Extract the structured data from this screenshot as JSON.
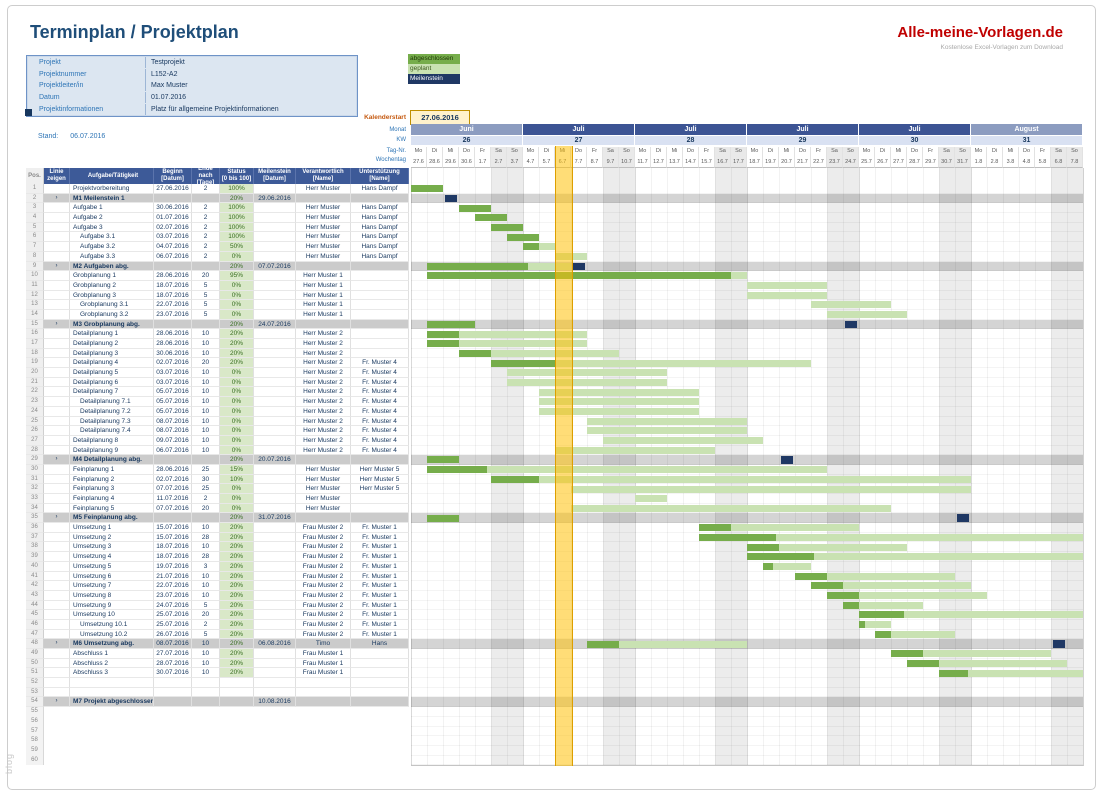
{
  "header": {
    "title": "Terminplan / Projektplan",
    "logo": "Alle-meine-Vorlagen.de",
    "logo_sub": "Kostenlose Excel-Vorlagen zum Download",
    "stand_label": "Stand:",
    "stand_value": "06.07.2016"
  },
  "project_info": {
    "rows": [
      {
        "label": "Projekt",
        "value": "Testprojekt"
      },
      {
        "label": "Projektnummer",
        "value": "L152-A2"
      },
      {
        "label": "Projektleiter/in",
        "value": "Max Muster"
      },
      {
        "label": "Datum",
        "value": "01.07.2016"
      },
      {
        "label": "Projektinformationen",
        "value": "Platz für allgemeine Projektinformationen"
      }
    ]
  },
  "legend": [
    {
      "label": "abgeschlossen",
      "color": "#76AD4B",
      "text": "#203808"
    },
    {
      "label": "geplant",
      "color": "#C9E2B2",
      "text": "#3C5A1E"
    },
    {
      "label": "Meilenstein",
      "color": "#1F3864",
      "text": "#FFFFFF"
    }
  ],
  "colors": {
    "done": "#76AD4B",
    "planned": "#C9E2B2",
    "milestone": "#1F3864",
    "today": "#FFC000",
    "header_blue": "#3D5A98"
  },
  "calendar": {
    "kalenderstart_label": "Kalenderstart",
    "kalenderstart_value": "27.06.2016",
    "row_labels": [
      "Monat",
      "KW",
      "Tag-Nr.",
      "Wochentag"
    ],
    "months": [
      {
        "label": "Juni",
        "days": 7,
        "shade": "light"
      },
      {
        "label": "Juli",
        "days": 7,
        "shade": "dark"
      },
      {
        "label": "Juli",
        "days": 7,
        "shade": "dark"
      },
      {
        "label": "Juli",
        "days": 7,
        "shade": "dark"
      },
      {
        "label": "Juli",
        "days": 7,
        "shade": "dark"
      },
      {
        "label": "August",
        "days": 7,
        "shade": "light"
      }
    ],
    "weeks": [
      "26",
      "27",
      "28",
      "29",
      "30",
      "31"
    ],
    "weekdays": [
      "Mo",
      "Di",
      "Mi",
      "Do",
      "Fr",
      "Sa",
      "So"
    ],
    "dates": [
      "27.6",
      "28.6",
      "29.6",
      "30.6",
      "1.7",
      "2.7",
      "3.7",
      "4.7",
      "5.7",
      "6.7",
      "7.7",
      "8.7",
      "9.7",
      "10.7",
      "11.7",
      "12.7",
      "13.7",
      "14.7",
      "15.7",
      "16.7",
      "17.7",
      "18.7",
      "19.7",
      "20.7",
      "21.7",
      "22.7",
      "23.7",
      "24.7",
      "25.7",
      "26.7",
      "27.7",
      "28.7",
      "29.7",
      "30.7",
      "31.7",
      "1.8",
      "2.8",
      "3.8",
      "4.8",
      "5.8",
      "6.8",
      "7.8"
    ],
    "today_index": 9
  },
  "table": {
    "headers": [
      {
        "l1": "Pos.",
        "l2": ""
      },
      {
        "l1": "Linie",
        "l2": "zeigen"
      },
      {
        "l1": "Aufgabe/Tätigkeit",
        "l2": ""
      },
      {
        "l1": "Beginn",
        "l2": "[Datum]"
      },
      {
        "l1": "Ende nach",
        "l2": "[Tage]"
      },
      {
        "l1": "Status",
        "l2": "[0 bis 100]"
      },
      {
        "l1": "Meilenstein",
        "l2": "[Datum]"
      },
      {
        "l1": "Verantwortlich",
        "l2": "[Name]"
      },
      {
        "l1": "Unterstützung",
        "l2": "[Name]"
      }
    ]
  },
  "rows": [
    {
      "pos": "1",
      "task": "Projektvorbereitung",
      "beginn": "27.06.2016",
      "ende": "2",
      "status": "100%",
      "verantwortlich": "Herr Muster",
      "unterstuetzung": "Hans Dampf",
      "kind": "task",
      "bar": {
        "s": 0,
        "l": 2,
        "d": 1
      }
    },
    {
      "pos": "2",
      "linie": "›",
      "task": "M1 Meilenstein 1",
      "status": "20%",
      "meilenstein": "29.06.2016",
      "kind": "ms",
      "ms": 2
    },
    {
      "pos": "3",
      "task": "Aufgabe 1",
      "beginn": "30.06.2016",
      "ende": "2",
      "status": "100%",
      "verantwortlich": "Herr Muster",
      "unterstuetzung": "Hans Dampf",
      "kind": "task",
      "bar": {
        "s": 3,
        "l": 2,
        "d": 1
      }
    },
    {
      "pos": "4",
      "task": "Aufgabe 2",
      "beginn": "01.07.2016",
      "ende": "2",
      "status": "100%",
      "verantwortlich": "Herr Muster",
      "unterstuetzung": "Hans Dampf",
      "kind": "task",
      "bar": {
        "s": 4,
        "l": 2,
        "d": 1
      }
    },
    {
      "pos": "5",
      "task": "Aufgabe 3",
      "beginn": "02.07.2016",
      "ende": "2",
      "status": "100%",
      "verantwortlich": "Herr Muster",
      "unterstuetzung": "Hans Dampf",
      "kind": "task",
      "bar": {
        "s": 5,
        "l": 2,
        "d": 1
      }
    },
    {
      "pos": "6",
      "task": "Aufgabe 3.1",
      "ind": 1,
      "beginn": "03.07.2016",
      "ende": "2",
      "status": "100%",
      "verantwortlich": "Herr Muster",
      "unterstuetzung": "Hans Dampf",
      "kind": "task",
      "bar": {
        "s": 6,
        "l": 2,
        "d": 1
      }
    },
    {
      "pos": "7",
      "task": "Aufgabe 3.2",
      "ind": 1,
      "beginn": "04.07.2016",
      "ende": "2",
      "status": "50%",
      "verantwortlich": "Herr Muster",
      "unterstuetzung": "Hans Dampf",
      "kind": "task",
      "bar": {
        "s": 7,
        "l": 2,
        "d": 0.5
      }
    },
    {
      "pos": "8",
      "task": "Aufgabe 3.3",
      "ind": 1,
      "beginn": "06.07.2016",
      "ende": "2",
      "status": "0%",
      "verantwortlich": "Herr Muster",
      "unterstuetzung": "Hans Dampf",
      "kind": "task",
      "bar": {
        "s": 9,
        "l": 2,
        "d": 0
      }
    },
    {
      "pos": "9",
      "linie": "›",
      "task": "M2 Aufgaben abg.",
      "status": "20%",
      "meilenstein": "07.07.2016",
      "kind": "ms",
      "ms": 10,
      "bar": {
        "s": 1,
        "l": 9,
        "d": 0.7
      }
    },
    {
      "pos": "10",
      "task": "Grobplanung 1",
      "beginn": "28.06.2016",
      "ende": "20",
      "status": "95%",
      "verantwortlich": "Herr Muster 1",
      "kind": "task",
      "bar": {
        "s": 1,
        "l": 20,
        "d": 0.95
      }
    },
    {
      "pos": "11",
      "task": "Grobplanung 2",
      "beginn": "18.07.2016",
      "ende": "5",
      "status": "0%",
      "verantwortlich": "Herr Muster 1",
      "kind": "task",
      "bar": {
        "s": 21,
        "l": 5,
        "d": 0
      }
    },
    {
      "pos": "12",
      "task": "Grobplanung 3",
      "beginn": "18.07.2016",
      "ende": "5",
      "status": "0%",
      "verantwortlich": "Herr Muster 1",
      "kind": "task",
      "bar": {
        "s": 21,
        "l": 5,
        "d": 0
      }
    },
    {
      "pos": "13",
      "task": "Grobplanung 3.1",
      "ind": 1,
      "beginn": "22.07.2016",
      "ende": "5",
      "status": "0%",
      "verantwortlich": "Herr Muster 1",
      "kind": "task",
      "bar": {
        "s": 25,
        "l": 5,
        "d": 0
      }
    },
    {
      "pos": "14",
      "task": "Grobplanung 3.2",
      "ind": 1,
      "beginn": "23.07.2016",
      "ende": "5",
      "status": "0%",
      "verantwortlich": "Herr Muster 1",
      "kind": "task",
      "bar": {
        "s": 26,
        "l": 5,
        "d": 0
      }
    },
    {
      "pos": "15",
      "linie": "›",
      "task": "M3 Grobplanung abg.",
      "status": "20%",
      "meilenstein": "24.07.2016",
      "kind": "ms",
      "ms": 27,
      "bar": {
        "s": 1,
        "l": 3,
        "d": 1
      }
    },
    {
      "pos": "16",
      "task": "Detailplanung 1",
      "beginn": "28.06.2016",
      "ende": "10",
      "status": "20%",
      "verantwortlich": "Herr Muster 2",
      "kind": "task",
      "bar": {
        "s": 1,
        "l": 10,
        "d": 0.2
      }
    },
    {
      "pos": "17",
      "task": "Detailplanung 2",
      "beginn": "28.06.2016",
      "ende": "10",
      "status": "20%",
      "verantwortlich": "Herr Muster 2",
      "kind": "task",
      "bar": {
        "s": 1,
        "l": 10,
        "d": 0.2
      }
    },
    {
      "pos": "18",
      "task": "Detailplanung 3",
      "beginn": "30.06.2016",
      "ende": "10",
      "status": "20%",
      "verantwortlich": "Herr Muster 2",
      "kind": "task",
      "bar": {
        "s": 3,
        "l": 10,
        "d": 0.2
      }
    },
    {
      "pos": "19",
      "task": "Detailplanung 4",
      "beginn": "02.07.2016",
      "ende": "20",
      "status": "20%",
      "verantwortlich": "Herr Muster 2",
      "unterstuetzung": "Fr. Muster 4",
      "kind": "task",
      "bar": {
        "s": 5,
        "l": 20,
        "d": 0.2
      }
    },
    {
      "pos": "20",
      "task": "Detailplanung 5",
      "beginn": "03.07.2016",
      "ende": "10",
      "status": "0%",
      "verantwortlich": "Herr Muster 2",
      "unterstuetzung": "Fr. Muster 4",
      "kind": "task",
      "bar": {
        "s": 6,
        "l": 10,
        "d": 0
      }
    },
    {
      "pos": "21",
      "task": "Detailplanung 6",
      "beginn": "03.07.2016",
      "ende": "10",
      "status": "0%",
      "verantwortlich": "Herr Muster 2",
      "unterstuetzung": "Fr. Muster 4",
      "kind": "task",
      "bar": {
        "s": 6,
        "l": 10,
        "d": 0
      }
    },
    {
      "pos": "22",
      "task": "Detailplanung 7",
      "beginn": "05.07.2016",
      "ende": "10",
      "status": "0%",
      "verantwortlich": "Herr Muster 2",
      "unterstuetzung": "Fr. Muster 4",
      "kind": "task",
      "bar": {
        "s": 8,
        "l": 10,
        "d": 0
      }
    },
    {
      "pos": "23",
      "task": "Detailplanung 7.1",
      "ind": 1,
      "beginn": "05.07.2016",
      "ende": "10",
      "status": "0%",
      "verantwortlich": "Herr Muster 2",
      "unterstuetzung": "Fr. Muster 4",
      "kind": "task",
      "bar": {
        "s": 8,
        "l": 10,
        "d": 0
      }
    },
    {
      "pos": "24",
      "task": "Detailplanung 7.2",
      "ind": 1,
      "beginn": "05.07.2016",
      "ende": "10",
      "status": "0%",
      "verantwortlich": "Herr Muster 2",
      "unterstuetzung": "Fr. Muster 4",
      "kind": "task",
      "bar": {
        "s": 8,
        "l": 10,
        "d": 0
      }
    },
    {
      "pos": "25",
      "task": "Detailplanung 7.3",
      "ind": 1,
      "beginn": "08.07.2016",
      "ende": "10",
      "status": "0%",
      "verantwortlich": "Herr Muster 2",
      "unterstuetzung": "Fr. Muster 4",
      "kind": "task",
      "bar": {
        "s": 11,
        "l": 10,
        "d": 0
      }
    },
    {
      "pos": "26",
      "task": "Detailplanung 7.4",
      "ind": 1,
      "beginn": "08.07.2016",
      "ende": "10",
      "status": "0%",
      "verantwortlich": "Herr Muster 2",
      "unterstuetzung": "Fr. Muster 4",
      "kind": "task",
      "bar": {
        "s": 11,
        "l": 10,
        "d": 0
      }
    },
    {
      "pos": "27",
      "task": "Detailplanung 8",
      "beginn": "09.07.2016",
      "ende": "10",
      "status": "0%",
      "verantwortlich": "Herr Muster 2",
      "unterstuetzung": "Fr. Muster 4",
      "kind": "task",
      "bar": {
        "s": 12,
        "l": 10,
        "d": 0
      }
    },
    {
      "pos": "28",
      "task": "Detailplanung 9",
      "beginn": "06.07.2016",
      "ende": "10",
      "status": "0%",
      "verantwortlich": "Herr Muster 2",
      "unterstuetzung": "Fr. Muster 4",
      "kind": "task",
      "bar": {
        "s": 9,
        "l": 10,
        "d": 0
      }
    },
    {
      "pos": "29",
      "linie": "›",
      "task": "M4 Detailplanung abg.",
      "status": "20%",
      "meilenstein": "20.07.2016",
      "kind": "ms",
      "ms": 23,
      "bar": {
        "s": 1,
        "l": 2,
        "d": 1
      }
    },
    {
      "pos": "30",
      "task": "Feinplanung 1",
      "beginn": "28.06.2016",
      "ende": "25",
      "status": "15%",
      "verantwortlich": "Herr Muster",
      "unterstuetzung": "Herr Muster 5",
      "kind": "task",
      "bar": {
        "s": 1,
        "l": 25,
        "d": 0.15
      }
    },
    {
      "pos": "31",
      "task": "Feinplanung 2",
      "beginn": "02.07.2016",
      "ende": "30",
      "status": "10%",
      "verantwortlich": "Herr Muster",
      "unterstuetzung": "Herr Muster 5",
      "kind": "task",
      "bar": {
        "s": 5,
        "l": 30,
        "d": 0.1
      }
    },
    {
      "pos": "32",
      "task": "Feinplanung 3",
      "beginn": "07.07.2016",
      "ende": "25",
      "status": "0%",
      "verantwortlich": "Herr Muster",
      "unterstuetzung": "Herr Muster 5",
      "kind": "task",
      "bar": {
        "s": 10,
        "l": 25,
        "d": 0
      }
    },
    {
      "pos": "33",
      "task": "Feinplanung 4",
      "beginn": "11.07.2016",
      "ende": "2",
      "status": "0%",
      "verantwortlich": "Herr Muster",
      "kind": "task",
      "bar": {
        "s": 14,
        "l": 2,
        "d": 0
      }
    },
    {
      "pos": "34",
      "task": "Feinplanung 5",
      "beginn": "07.07.2016",
      "ende": "20",
      "status": "0%",
      "verantwortlich": "Herr Muster",
      "kind": "task",
      "bar": {
        "s": 10,
        "l": 20,
        "d": 0
      }
    },
    {
      "pos": "35",
      "linie": "›",
      "task": "M5 Feinplanung abg.",
      "status": "20%",
      "meilenstein": "31.07.2016",
      "kind": "ms",
      "ms": 34,
      "bar": {
        "s": 1,
        "l": 2,
        "d": 1
      }
    },
    {
      "pos": "36",
      "task": "Umsetzung 1",
      "beginn": "15.07.2016",
      "ende": "10",
      "status": "20%",
      "verantwortlich": "Frau Muster 2",
      "unterstuetzung": "Fr. Muster 1",
      "kind": "task",
      "bar": {
        "s": 18,
        "l": 10,
        "d": 0.2
      }
    },
    {
      "pos": "37",
      "task": "Umsetzung 2",
      "beginn": "15.07.2016",
      "ende": "28",
      "status": "20%",
      "verantwortlich": "Frau Muster 2",
      "unterstuetzung": "Fr. Muster 1",
      "kind": "task",
      "bar": {
        "s": 18,
        "l": 24,
        "d": 0.2
      }
    },
    {
      "pos": "38",
      "task": "Umsetzung 3",
      "beginn": "18.07.2016",
      "ende": "10",
      "status": "20%",
      "verantwortlich": "Frau Muster 2",
      "unterstuetzung": "Fr. Muster 1",
      "kind": "task",
      "bar": {
        "s": 21,
        "l": 10,
        "d": 0.2
      }
    },
    {
      "pos": "39",
      "task": "Umsetzung 4",
      "beginn": "18.07.2016",
      "ende": "28",
      "status": "20%",
      "verantwortlich": "Frau Muster 2",
      "unterstuetzung": "Fr. Muster 1",
      "kind": "task",
      "bar": {
        "s": 21,
        "l": 21,
        "d": 0.2
      }
    },
    {
      "pos": "40",
      "task": "Umsetzung 5",
      "beginn": "19.07.2016",
      "ende": "3",
      "status": "20%",
      "verantwortlich": "Frau Muster 2",
      "unterstuetzung": "Fr. Muster 1",
      "kind": "task",
      "bar": {
        "s": 22,
        "l": 3,
        "d": 0.2
      }
    },
    {
      "pos": "41",
      "task": "Umsetzung 6",
      "beginn": "21.07.2016",
      "ende": "10",
      "status": "20%",
      "verantwortlich": "Frau Muster 2",
      "unterstuetzung": "Fr. Muster 1",
      "kind": "task",
      "bar": {
        "s": 24,
        "l": 10,
        "d": 0.2
      }
    },
    {
      "pos": "42",
      "task": "Umsetzung 7",
      "beginn": "22.07.2016",
      "ende": "10",
      "status": "20%",
      "verantwortlich": "Frau Muster 2",
      "unterstuetzung": "Fr. Muster 1",
      "kind": "task",
      "bar": {
        "s": 25,
        "l": 10,
        "d": 0.2
      }
    },
    {
      "pos": "43",
      "task": "Umsetzung 8",
      "beginn": "23.07.2016",
      "ende": "10",
      "status": "20%",
      "verantwortlich": "Frau Muster 2",
      "unterstuetzung": "Fr. Muster 1",
      "kind": "task",
      "bar": {
        "s": 26,
        "l": 10,
        "d": 0.2
      }
    },
    {
      "pos": "44",
      "task": "Umsetzung 9",
      "beginn": "24.07.2016",
      "ende": "5",
      "status": "20%",
      "verantwortlich": "Frau Muster 2",
      "unterstuetzung": "Fr. Muster 1",
      "kind": "task",
      "bar": {
        "s": 27,
        "l": 5,
        "d": 0.2
      }
    },
    {
      "pos": "45",
      "task": "Umsetzung 10",
      "beginn": "25.07.2016",
      "ende": "20",
      "status": "20%",
      "verantwortlich": "Frau Muster 2",
      "unterstuetzung": "Fr. Muster 1",
      "kind": "task",
      "bar": {
        "s": 28,
        "l": 14,
        "d": 0.2
      }
    },
    {
      "pos": "46",
      "task": "Umsetzung 10.1",
      "ind": 1,
      "beginn": "25.07.2016",
      "ende": "2",
      "status": "20%",
      "verantwortlich": "Frau Muster 2",
      "unterstuetzung": "Fr. Muster 1",
      "kind": "task",
      "bar": {
        "s": 28,
        "l": 2,
        "d": 0.2
      }
    },
    {
      "pos": "47",
      "task": "Umsetzung 10.2",
      "ind": 1,
      "beginn": "26.07.2016",
      "ende": "5",
      "status": "20%",
      "verantwortlich": "Frau Muster 2",
      "unterstuetzung": "Fr. Muster 1",
      "kind": "task",
      "bar": {
        "s": 29,
        "l": 5,
        "d": 0.2
      }
    },
    {
      "pos": "48",
      "linie": "›",
      "task": "M6 Umsetzung abg.",
      "beginn": "08.07.2016",
      "ende": "10",
      "status": "20%",
      "meilenstein": "06.08.2016",
      "verantwortlich": "Timo",
      "unterstuetzung": "Hans",
      "kind": "ms",
      "ms": 40,
      "bar": {
        "s": 11,
        "l": 10,
        "d": 0.2
      }
    },
    {
      "pos": "49",
      "task": "Abschluss 1",
      "beginn": "27.07.2016",
      "ende": "10",
      "status": "20%",
      "verantwortlich": "Frau Muster 1",
      "kind": "task",
      "bar": {
        "s": 30,
        "l": 10,
        "d": 0.2
      }
    },
    {
      "pos": "50",
      "task": "Abschluss 2",
      "beginn": "28.07.2016",
      "ende": "10",
      "status": "20%",
      "verantwortlich": "Frau Muster 1",
      "kind": "task",
      "bar": {
        "s": 31,
        "l": 10,
        "d": 0.2
      }
    },
    {
      "pos": "51",
      "task": "Abschluss 3",
      "beginn": "30.07.2016",
      "ende": "10",
      "status": "20%",
      "verantwortlich": "Frau Muster 1",
      "kind": "task",
      "bar": {
        "s": 33,
        "l": 9,
        "d": 0.2
      }
    },
    {
      "pos": "52",
      "kind": "task"
    },
    {
      "pos": "53",
      "kind": "task"
    },
    {
      "pos": "54",
      "linie": "›",
      "task": "M7 Projekt abgeschlossen",
      "meilenstein": "10.08.2016",
      "kind": "ms"
    },
    {
      "pos": "55",
      "kind": "blank"
    },
    {
      "pos": "56",
      "kind": "blank"
    },
    {
      "pos": "57",
      "kind": "blank"
    },
    {
      "pos": "58",
      "kind": "blank"
    },
    {
      "pos": "59",
      "kind": "blank"
    },
    {
      "pos": "60",
      "kind": "blank"
    }
  ],
  "watermark": "blog"
}
